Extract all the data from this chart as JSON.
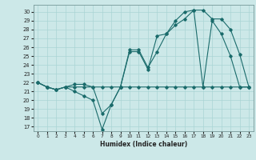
{
  "xlabel": "Humidex (Indice chaleur)",
  "background_color": "#cce8e8",
  "grid_color": "#aad4d4",
  "line_color": "#1a6b6b",
  "xlim": [
    -0.5,
    23.5
  ],
  "ylim": [
    16.5,
    30.8
  ],
  "xticks": [
    0,
    1,
    2,
    3,
    4,
    5,
    6,
    7,
    8,
    9,
    10,
    11,
    12,
    13,
    14,
    15,
    16,
    17,
    18,
    19,
    20,
    21,
    22,
    23
  ],
  "yticks": [
    17,
    18,
    19,
    20,
    21,
    22,
    23,
    24,
    25,
    26,
    27,
    28,
    29,
    30
  ],
  "flat_y": [
    22,
    21.5,
    21.2,
    21.5,
    21.5,
    21.5,
    21.5,
    21.5,
    21.5,
    21.5,
    21.5,
    21.5,
    21.5,
    21.5,
    21.5,
    21.5,
    21.5,
    21.5,
    21.5,
    21.5,
    21.5,
    21.5,
    21.5,
    21.5
  ],
  "dip_y": [
    22,
    21.5,
    21.2,
    21.5,
    21.0,
    20.5,
    20.0,
    16.7,
    19.5,
    21.5,
    25.5,
    25.5,
    23.5,
    27.3,
    27.5,
    28.5,
    29.2,
    30.2,
    21.5,
    29.0,
    27.5,
    25.0,
    21.5,
    21.5
  ],
  "high_y": [
    22,
    21.5,
    21.2,
    21.5,
    21.8,
    21.8,
    21.5,
    18.5,
    19.5,
    21.5,
    25.7,
    25.7,
    23.7,
    25.5,
    27.5,
    29.0,
    30.0,
    30.2,
    30.2,
    29.2,
    29.2,
    28.0,
    25.2,
    21.5
  ]
}
